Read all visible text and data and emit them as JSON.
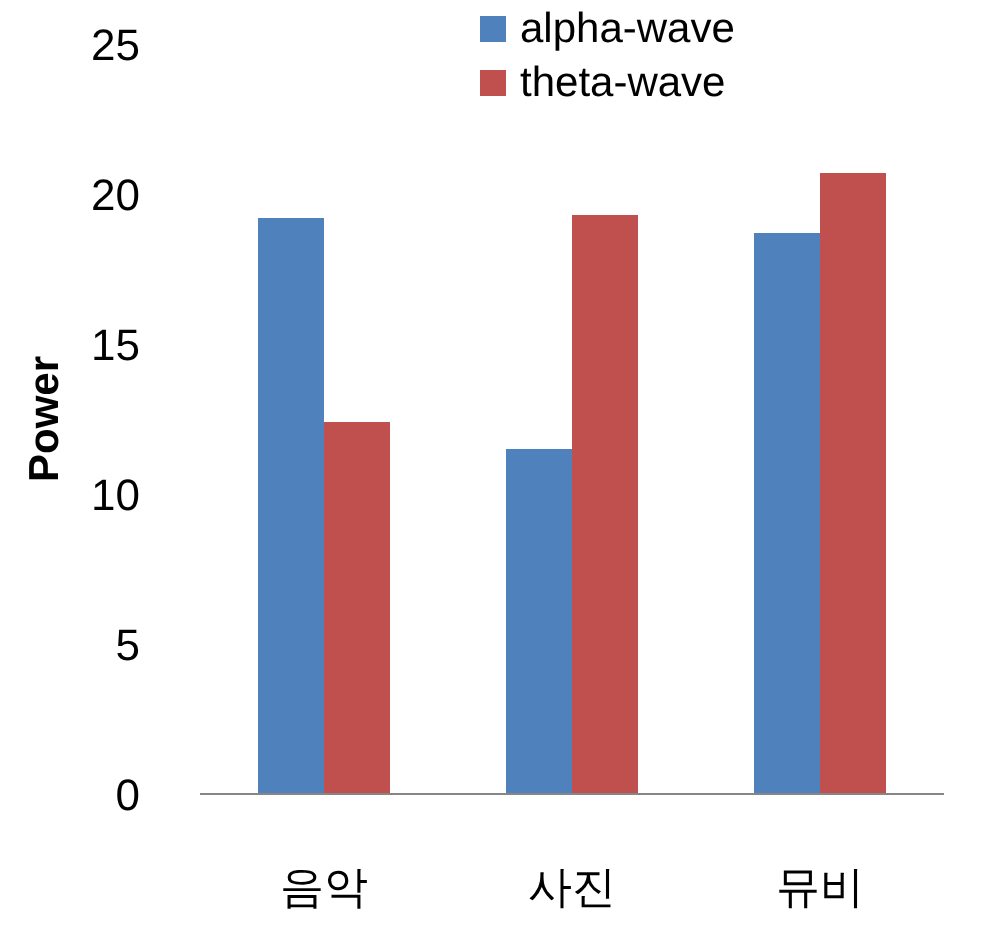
{
  "chart_data": {
    "type": "bar",
    "ylabel": "Power",
    "categories": [
      "음악",
      "사진",
      "뮤비"
    ],
    "series": [
      {
        "name": "alpha-wave",
        "color": "#4f81bd",
        "values": [
          19.2,
          11.5,
          18.7
        ]
      },
      {
        "name": "theta-wave",
        "color": "#c0504d",
        "values": [
          12.4,
          19.3,
          20.7
        ]
      }
    ],
    "ylim": [
      0,
      25
    ],
    "yticks": [
      0,
      5,
      10,
      15,
      20,
      25
    ],
    "grid": false,
    "legend": "top"
  }
}
